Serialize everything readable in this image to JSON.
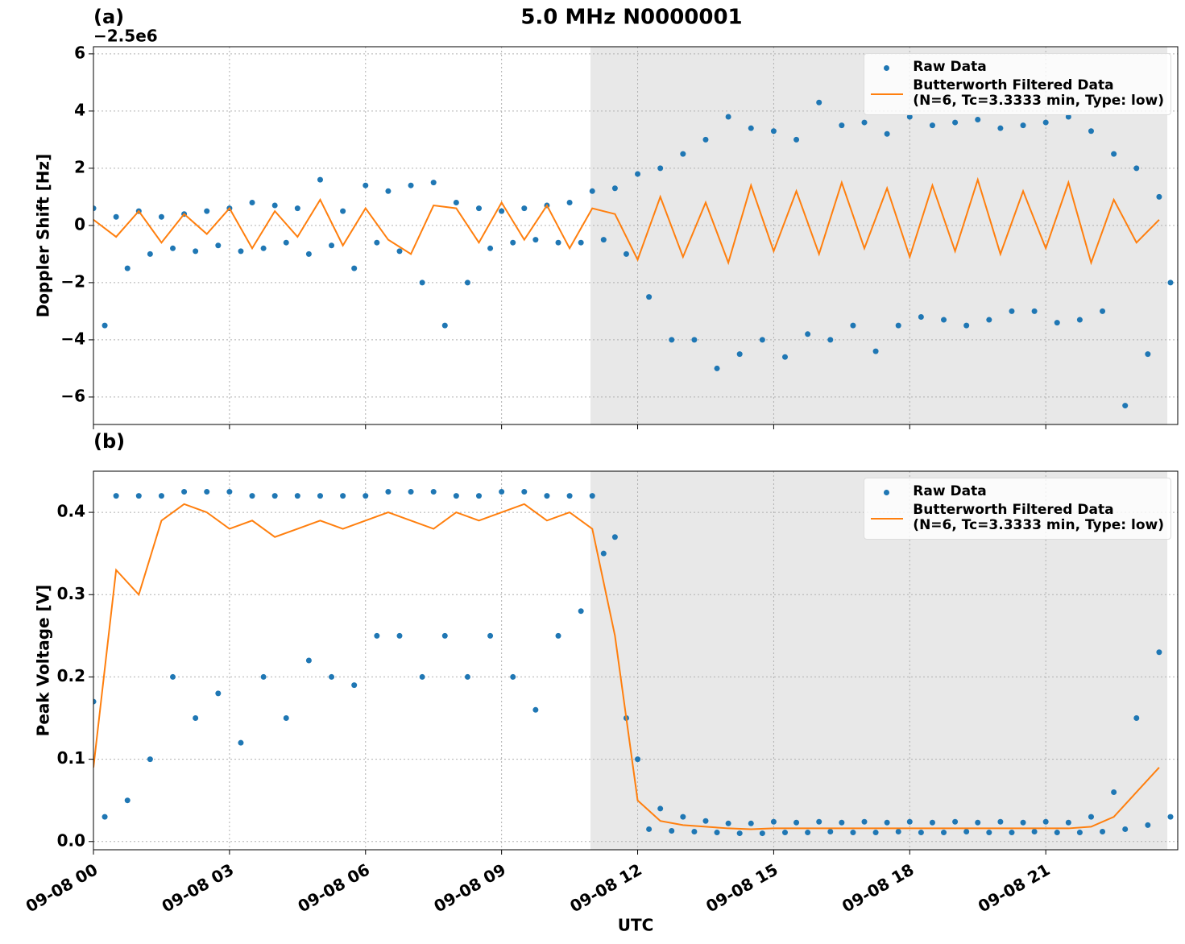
{
  "chart_data": [
    {
      "type": "scatter_line",
      "title": "5.0 MHz N0000001",
      "panel_label": "(a)",
      "offset_label": "−2.5e6",
      "ylabel": "Doppler Shift [Hz]",
      "xlim": [
        0,
        23.91
      ],
      "ylim": [
        -6.96,
        6.25
      ],
      "xticks": [
        0,
        3,
        6,
        9,
        12,
        15,
        18,
        21
      ],
      "show_xtick_labels": false,
      "yticks": [
        {
          "value": -6,
          "label": "−6"
        },
        {
          "value": -4,
          "label": "−4"
        },
        {
          "value": -2,
          "label": "−2"
        },
        0,
        2,
        4,
        6
      ],
      "grid": true,
      "shaded_region": [
        10.96,
        23.68
      ],
      "legend": "upper right",
      "series": [
        {
          "name": "Raw Data",
          "kind": "scatter",
          "color": "#1f77b4",
          "x": [
            0,
            0.25,
            0.5,
            0.75,
            1,
            1.25,
            1.5,
            1.75,
            2,
            2.25,
            2.5,
            2.75,
            3,
            3.25,
            3.5,
            3.75,
            4,
            4.25,
            4.5,
            4.75,
            5,
            5.25,
            5.5,
            5.75,
            6,
            6.25,
            6.5,
            6.75,
            7,
            7.25,
            7.5,
            7.75,
            8,
            8.25,
            8.5,
            8.75,
            9,
            9.25,
            9.5,
            9.75,
            10,
            10.25,
            10.5,
            10.75,
            11,
            11.25,
            11.5,
            11.75,
            12,
            12.25,
            12.5,
            12.75,
            13,
            13.25,
            13.5,
            13.75,
            14,
            14.25,
            14.5,
            14.75,
            15,
            15.25,
            15.5,
            15.75,
            16,
            16.25,
            16.5,
            16.75,
            17,
            17.25,
            17.5,
            17.75,
            18,
            18.25,
            18.5,
            18.75,
            19,
            19.25,
            19.5,
            19.75,
            20,
            20.25,
            20.5,
            20.75,
            21,
            21.25,
            21.5,
            21.75,
            22,
            22.25,
            22.5,
            22.75,
            23,
            23.25,
            23.5,
            23.75
          ],
          "values": [
            0.6,
            -3.5,
            0.3,
            -1.5,
            0.5,
            -1,
            0.3,
            -0.8,
            0.4,
            -0.9,
            0.5,
            -0.7,
            0.6,
            -0.9,
            0.8,
            -0.8,
            0.7,
            -0.6,
            0.6,
            -1.0,
            1.6,
            -0.7,
            0.5,
            -1.5,
            1.4,
            -0.6,
            1.2,
            -0.9,
            1.4,
            -2.0,
            1.5,
            -3.5,
            0.8,
            -2.0,
            0.6,
            -0.8,
            0.5,
            -0.6,
            0.6,
            -0.5,
            0.7,
            -0.6,
            0.8,
            -0.6,
            1.2,
            -0.5,
            1.3,
            -1.0,
            1.8,
            -2.5,
            2.0,
            -4.0,
            2.5,
            -4.0,
            3.0,
            -5.0,
            3.8,
            -4.5,
            3.4,
            -4.0,
            3.3,
            -4.6,
            3.0,
            -3.8,
            4.3,
            -4.0,
            3.5,
            -3.5,
            3.6,
            -4.4,
            3.2,
            -3.5,
            3.8,
            -3.2,
            3.5,
            -3.3,
            3.6,
            -3.5,
            3.7,
            -3.3,
            3.4,
            -3.0,
            3.5,
            -3.0,
            3.6,
            -3.4,
            3.8,
            -3.3,
            3.3,
            -3.0,
            2.5,
            -6.3,
            2.0,
            -4.5,
            1.0,
            -2.0
          ]
        },
        {
          "name": "Butterworth Filtered Data\n(N=6, Tc=3.3333 min, Type: low)",
          "kind": "line",
          "color": "#ff7f0e",
          "x": [
            0,
            0.5,
            1,
            1.5,
            2,
            2.5,
            3,
            3.5,
            4,
            4.5,
            5,
            5.5,
            6,
            6.5,
            7,
            7.5,
            8,
            8.5,
            9,
            9.5,
            10,
            10.5,
            11,
            11.5,
            12,
            12.5,
            13,
            13.5,
            14,
            14.5,
            15,
            15.5,
            16,
            16.5,
            17,
            17.5,
            18,
            18.5,
            19,
            19.5,
            20,
            20.5,
            21,
            21.5,
            22,
            22.5,
            23,
            23.5
          ],
          "values": [
            0.2,
            -0.4,
            0.5,
            -0.6,
            0.4,
            -0.3,
            0.6,
            -0.8,
            0.5,
            -0.4,
            0.9,
            -0.7,
            0.6,
            -0.5,
            -1.0,
            0.7,
            0.6,
            -0.6,
            0.8,
            -0.5,
            0.7,
            -0.8,
            0.6,
            0.4,
            -1.2,
            1.0,
            -1.1,
            0.8,
            -1.3,
            1.4,
            -0.9,
            1.2,
            -1.0,
            1.5,
            -0.8,
            1.3,
            -1.1,
            1.4,
            -0.9,
            1.6,
            -1.0,
            1.2,
            -0.8,
            1.5,
            -1.3,
            0.9,
            -0.6,
            0.2
          ]
        }
      ]
    },
    {
      "type": "scatter_line",
      "panel_label": "(b)",
      "ylabel": "Peak Voltage [V]",
      "xlabel": "UTC",
      "xlim": [
        0,
        23.91
      ],
      "ylim": [
        -0.01,
        0.45
      ],
      "xticks": [
        {
          "value": 0,
          "label": "09-08 00"
        },
        {
          "value": 3,
          "label": "09-08 03"
        },
        {
          "value": 6,
          "label": "09-08 06"
        },
        {
          "value": 9,
          "label": "09-08 09"
        },
        {
          "value": 12,
          "label": "09-08 12"
        },
        {
          "value": 15,
          "label": "09-08 15"
        },
        {
          "value": 18,
          "label": "09-08 18"
        },
        {
          "value": 21,
          "label": "09-08 21"
        }
      ],
      "show_xtick_labels": true,
      "yticks": [
        {
          "value": 0,
          "label": "0.0"
        },
        0.1,
        0.2,
        0.3,
        0.4
      ],
      "grid": true,
      "shaded_region": [
        10.96,
        23.68
      ],
      "legend": "upper right",
      "series": [
        {
          "name": "Raw Data",
          "kind": "scatter",
          "color": "#1f77b4",
          "x": [
            0,
            0.25,
            0.5,
            0.75,
            1,
            1.25,
            1.5,
            1.75,
            2,
            2.25,
            2.5,
            2.75,
            3,
            3.25,
            3.5,
            3.75,
            4,
            4.25,
            4.5,
            4.75,
            5,
            5.25,
            5.5,
            5.75,
            6,
            6.25,
            6.5,
            6.75,
            7,
            7.25,
            7.5,
            7.75,
            8,
            8.25,
            8.5,
            8.75,
            9,
            9.25,
            9.5,
            9.75,
            10,
            10.25,
            10.5,
            10.75,
            11,
            11.25,
            11.5,
            11.75,
            12,
            12.25,
            12.5,
            12.75,
            13,
            13.25,
            13.5,
            13.75,
            14,
            14.25,
            14.5,
            14.75,
            15,
            15.25,
            15.5,
            15.75,
            16,
            16.25,
            16.5,
            16.75,
            17,
            17.25,
            17.5,
            17.75,
            18,
            18.25,
            18.5,
            18.75,
            19,
            19.25,
            19.5,
            19.75,
            20,
            20.25,
            20.5,
            20.75,
            21,
            21.25,
            21.5,
            21.75,
            22,
            22.25,
            22.5,
            22.75,
            23,
            23.25,
            23.5,
            23.75
          ],
          "values": [
            0.17,
            0.03,
            0.42,
            0.05,
            0.42,
            0.1,
            0.42,
            0.2,
            0.425,
            0.15,
            0.425,
            0.18,
            0.425,
            0.12,
            0.42,
            0.2,
            0.42,
            0.15,
            0.42,
            0.22,
            0.42,
            0.2,
            0.42,
            0.19,
            0.42,
            0.25,
            0.425,
            0.25,
            0.425,
            0.2,
            0.425,
            0.25,
            0.42,
            0.2,
            0.42,
            0.25,
            0.425,
            0.2,
            0.425,
            0.16,
            0.42,
            0.25,
            0.42,
            0.28,
            0.42,
            0.35,
            0.37,
            0.15,
            0.1,
            0.015,
            0.04,
            0.013,
            0.03,
            0.012,
            0.025,
            0.011,
            0.022,
            0.01,
            0.022,
            0.01,
            0.024,
            0.011,
            0.023,
            0.011,
            0.024,
            0.012,
            0.023,
            0.011,
            0.024,
            0.011,
            0.023,
            0.012,
            0.024,
            0.011,
            0.023,
            0.011,
            0.024,
            0.012,
            0.023,
            0.011,
            0.024,
            0.011,
            0.023,
            0.012,
            0.024,
            0.011,
            0.023,
            0.011,
            0.03,
            0.012,
            0.06,
            0.015,
            0.15,
            0.02,
            0.23,
            0.03
          ]
        },
        {
          "name": "Butterworth Filtered Data\n(N=6, Tc=3.3333 min, Type: low)",
          "kind": "line",
          "color": "#ff7f0e",
          "x": [
            0,
            0.5,
            1,
            1.5,
            2,
            2.5,
            3,
            3.5,
            4,
            4.5,
            5,
            5.5,
            6,
            6.5,
            7,
            7.5,
            8,
            8.5,
            9,
            9.5,
            10,
            10.5,
            11,
            11.5,
            12,
            12.5,
            13,
            13.5,
            14,
            14.5,
            15,
            15.5,
            16,
            16.5,
            17,
            17.5,
            18,
            18.5,
            19,
            19.5,
            20,
            20.5,
            21,
            21.5,
            22,
            22.5,
            23,
            23.5
          ],
          "values": [
            0.09,
            0.33,
            0.3,
            0.39,
            0.41,
            0.4,
            0.38,
            0.39,
            0.37,
            0.38,
            0.39,
            0.38,
            0.39,
            0.4,
            0.39,
            0.38,
            0.4,
            0.39,
            0.4,
            0.41,
            0.39,
            0.4,
            0.38,
            0.25,
            0.05,
            0.025,
            0.02,
            0.018,
            0.016,
            0.015,
            0.016,
            0.016,
            0.016,
            0.016,
            0.016,
            0.016,
            0.016,
            0.016,
            0.016,
            0.016,
            0.016,
            0.016,
            0.016,
            0.016,
            0.018,
            0.03,
            0.06,
            0.09
          ]
        }
      ]
    }
  ]
}
